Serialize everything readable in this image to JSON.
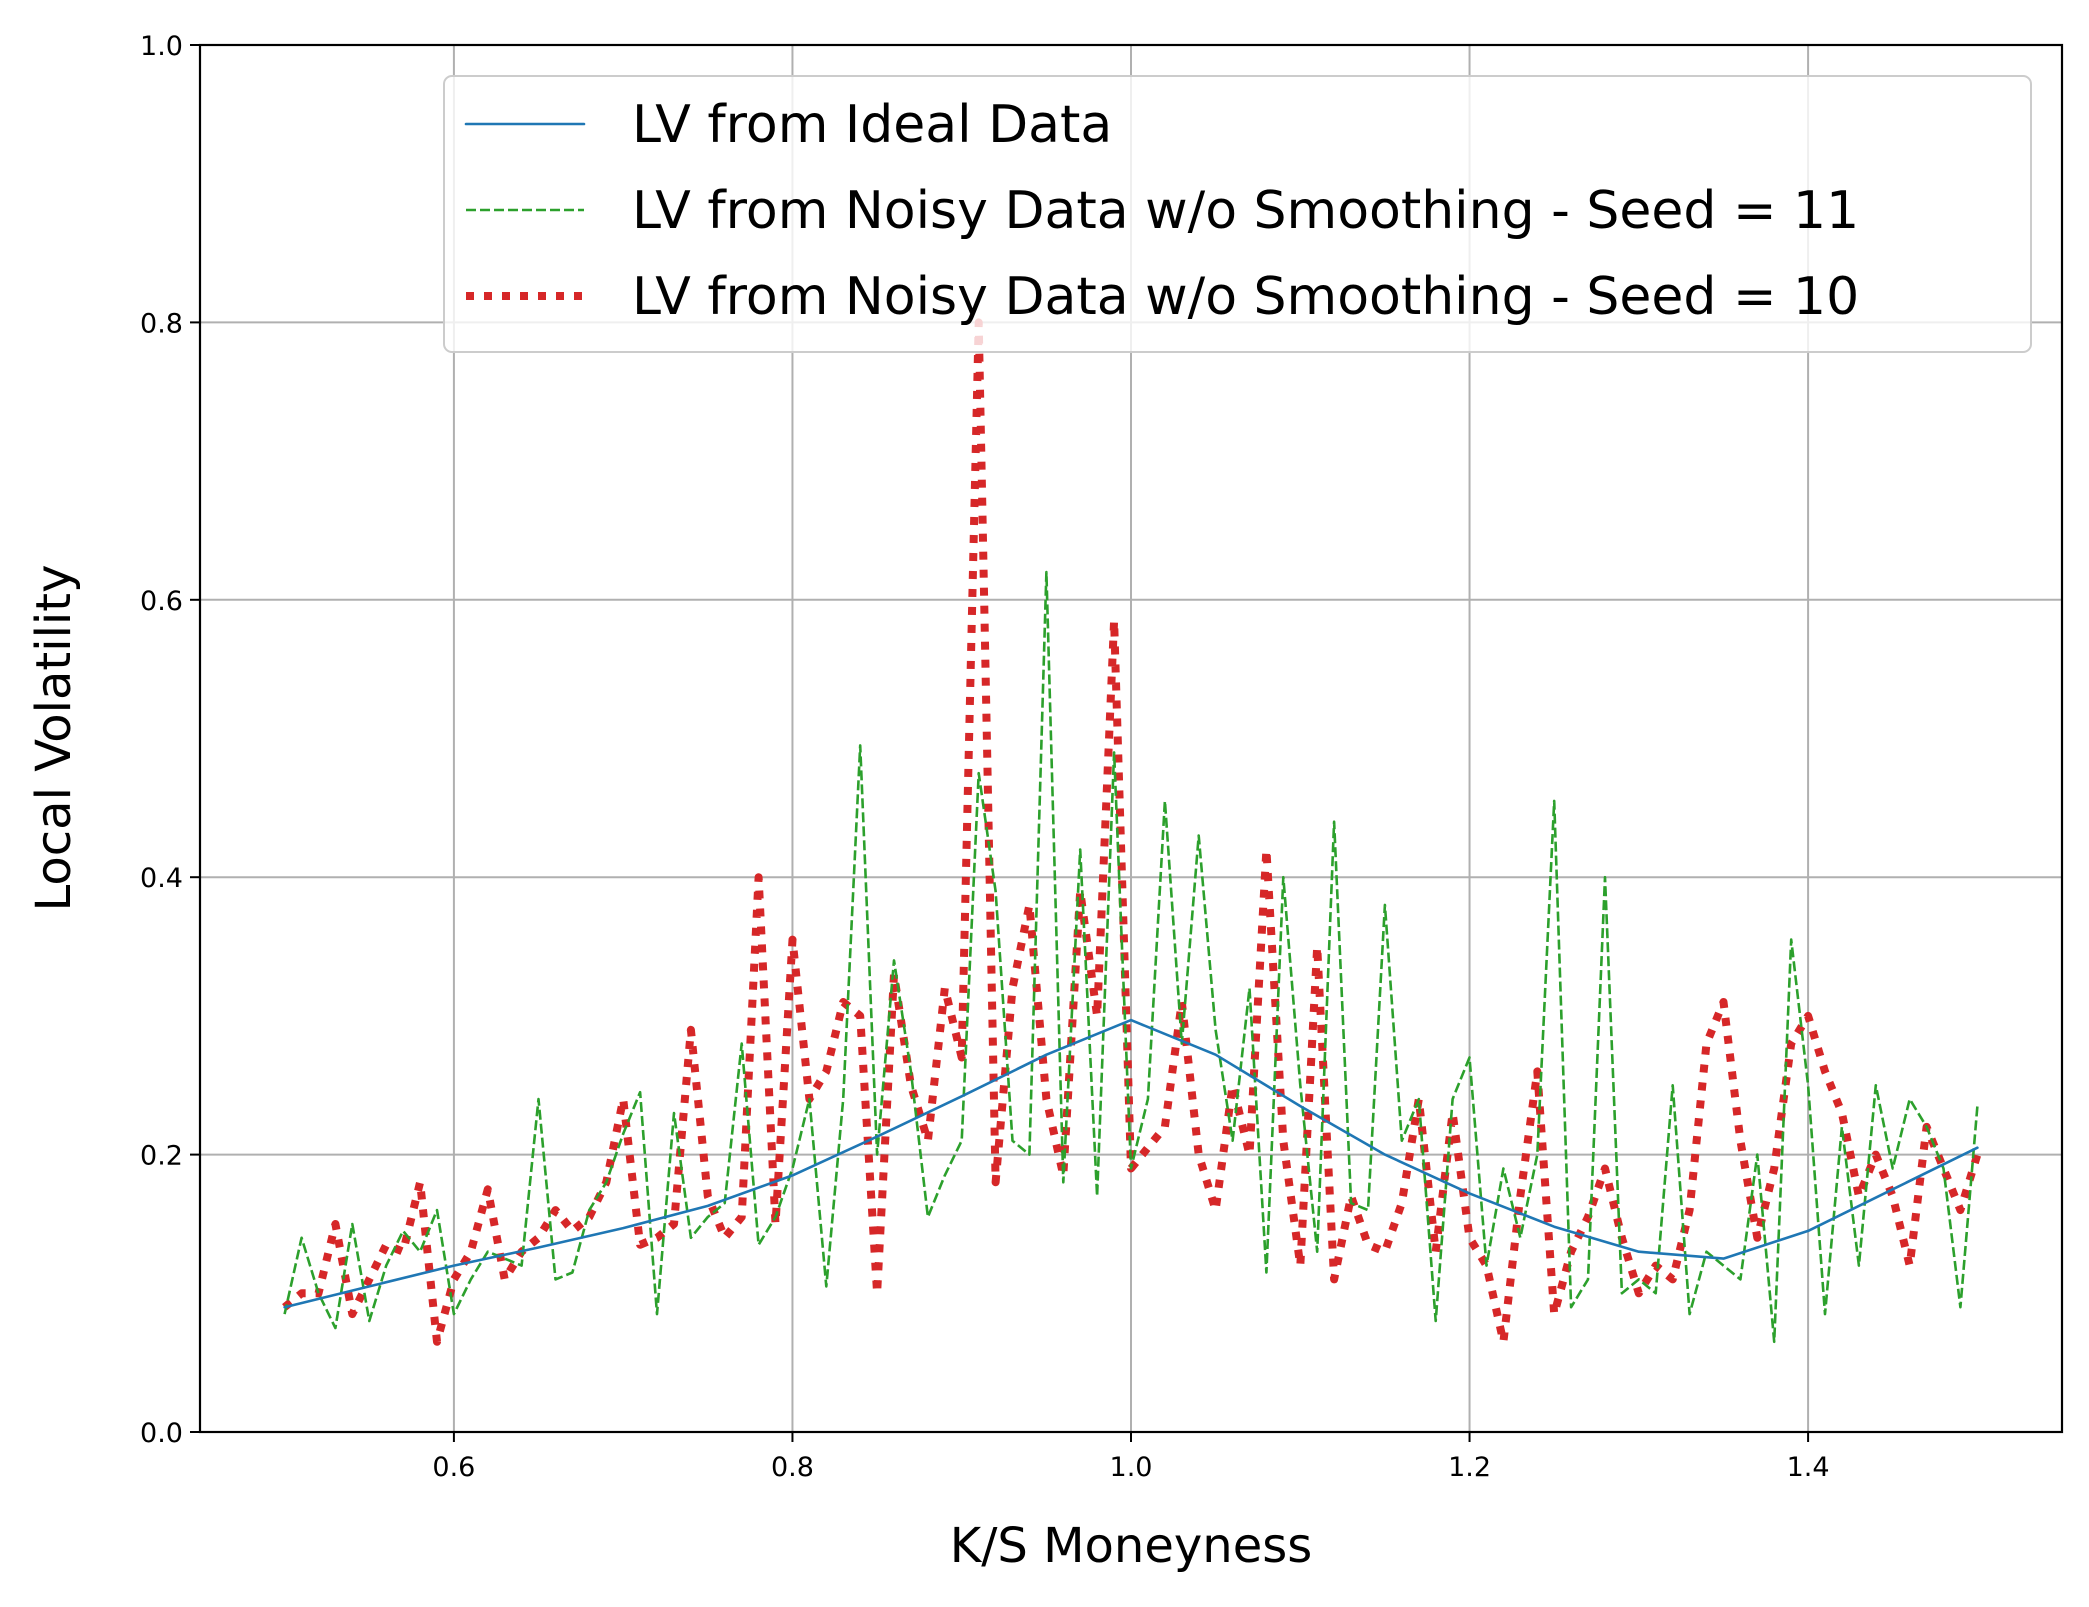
{
  "chart_data": {
    "type": "line",
    "title": "",
    "xlabel": "K/S Moneyness",
    "ylabel": "Local Volatility",
    "xlim": [
      0.45,
      1.55
    ],
    "ylim": [
      0.0,
      1.0
    ],
    "grid": true,
    "legend_position": "top-right",
    "x_ticks": [
      0.6,
      0.8,
      1.0,
      1.2,
      1.4
    ],
    "x_tick_labels": [
      "0.6",
      "0.8",
      "1.0",
      "1.2",
      "1.4"
    ],
    "y_ticks": [
      0.0,
      0.2,
      0.4,
      0.6,
      0.8,
      1.0
    ],
    "y_tick_labels": [
      "0.0",
      "0.2",
      "0.4",
      "0.6",
      "0.8",
      "1.0"
    ],
    "series": [
      {
        "name": "LV from Ideal Data",
        "color": "#1f77b4",
        "style": "solid",
        "x": [
          0.5,
          0.55,
          0.6,
          0.65,
          0.7,
          0.75,
          0.8,
          0.85,
          0.9,
          0.95,
          1.0,
          1.05,
          1.1,
          1.15,
          1.2,
          1.25,
          1.3,
          1.35,
          1.4,
          1.45,
          1.5
        ],
        "y": [
          0.09,
          0.105,
          0.12,
          0.133,
          0.147,
          0.163,
          0.185,
          0.213,
          0.242,
          0.272,
          0.297,
          0.272,
          0.235,
          0.2,
          0.172,
          0.148,
          0.13,
          0.125,
          0.145,
          0.175,
          0.205
        ]
      },
      {
        "name": "LV from Noisy Data w/o Smoothing - Seed = 11",
        "color": "#2ca02c",
        "style": "dashed",
        "x": [
          0.5,
          0.51,
          0.52,
          0.53,
          0.54,
          0.55,
          0.56,
          0.57,
          0.58,
          0.59,
          0.6,
          0.61,
          0.62,
          0.63,
          0.64,
          0.65,
          0.66,
          0.67,
          0.68,
          0.69,
          0.7,
          0.71,
          0.72,
          0.73,
          0.74,
          0.75,
          0.76,
          0.77,
          0.78,
          0.79,
          0.8,
          0.81,
          0.82,
          0.83,
          0.84,
          0.85,
          0.86,
          0.87,
          0.88,
          0.89,
          0.9,
          0.91,
          0.92,
          0.93,
          0.94,
          0.95,
          0.96,
          0.97,
          0.98,
          0.99,
          1.0,
          1.01,
          1.02,
          1.03,
          1.04,
          1.05,
          1.06,
          1.07,
          1.08,
          1.09,
          1.1,
          1.11,
          1.12,
          1.13,
          1.14,
          1.15,
          1.16,
          1.17,
          1.18,
          1.19,
          1.2,
          1.21,
          1.22,
          1.23,
          1.24,
          1.25,
          1.26,
          1.27,
          1.28,
          1.29,
          1.3,
          1.31,
          1.32,
          1.33,
          1.34,
          1.35,
          1.36,
          1.37,
          1.38,
          1.39,
          1.4,
          1.41,
          1.42,
          1.43,
          1.44,
          1.45,
          1.46,
          1.47,
          1.48,
          1.49,
          1.5
        ],
        "y": [
          0.085,
          0.14,
          0.1,
          0.075,
          0.15,
          0.08,
          0.12,
          0.145,
          0.13,
          0.16,
          0.085,
          0.11,
          0.13,
          0.125,
          0.12,
          0.24,
          0.11,
          0.115,
          0.16,
          0.18,
          0.215,
          0.245,
          0.085,
          0.23,
          0.14,
          0.155,
          0.165,
          0.28,
          0.135,
          0.155,
          0.19,
          0.24,
          0.105,
          0.24,
          0.495,
          0.2,
          0.34,
          0.26,
          0.155,
          0.185,
          0.21,
          0.475,
          0.39,
          0.21,
          0.2,
          0.62,
          0.18,
          0.42,
          0.17,
          0.49,
          0.19,
          0.24,
          0.455,
          0.28,
          0.43,
          0.29,
          0.21,
          0.32,
          0.115,
          0.4,
          0.25,
          0.13,
          0.44,
          0.165,
          0.16,
          0.38,
          0.21,
          0.24,
          0.08,
          0.24,
          0.27,
          0.12,
          0.19,
          0.14,
          0.2,
          0.455,
          0.09,
          0.11,
          0.4,
          0.1,
          0.11,
          0.1,
          0.25,
          0.085,
          0.13,
          0.12,
          0.11,
          0.2,
          0.065,
          0.355,
          0.25,
          0.085,
          0.22,
          0.12,
          0.25,
          0.19,
          0.24,
          0.22,
          0.19,
          0.09,
          0.235
        ]
      },
      {
        "name": "LV from Noisy Data w/o Smoothing - Seed = 10",
        "color": "#d62728",
        "style": "dotted",
        "x": [
          0.5,
          0.51,
          0.52,
          0.53,
          0.54,
          0.55,
          0.56,
          0.57,
          0.58,
          0.59,
          0.6,
          0.61,
          0.62,
          0.63,
          0.64,
          0.65,
          0.66,
          0.67,
          0.68,
          0.69,
          0.7,
          0.71,
          0.72,
          0.73,
          0.74,
          0.75,
          0.76,
          0.77,
          0.78,
          0.79,
          0.8,
          0.81,
          0.82,
          0.83,
          0.84,
          0.85,
          0.86,
          0.87,
          0.88,
          0.89,
          0.9,
          0.91,
          0.92,
          0.93,
          0.94,
          0.95,
          0.96,
          0.97,
          0.98,
          0.99,
          1.0,
          1.01,
          1.02,
          1.03,
          1.04,
          1.05,
          1.06,
          1.07,
          1.08,
          1.09,
          1.1,
          1.11,
          1.12,
          1.13,
          1.14,
          1.15,
          1.16,
          1.17,
          1.18,
          1.19,
          1.2,
          1.21,
          1.22,
          1.23,
          1.24,
          1.25,
          1.26,
          1.27,
          1.28,
          1.29,
          1.3,
          1.31,
          1.32,
          1.33,
          1.34,
          1.35,
          1.36,
          1.37,
          1.38,
          1.39,
          1.4,
          1.41,
          1.42,
          1.43,
          1.44,
          1.45,
          1.46,
          1.47,
          1.48,
          1.49,
          1.5
        ],
        "y": [
          0.09,
          0.1,
          0.1,
          0.15,
          0.085,
          0.11,
          0.135,
          0.13,
          0.18,
          0.065,
          0.11,
          0.13,
          0.175,
          0.11,
          0.13,
          0.14,
          0.16,
          0.145,
          0.155,
          0.18,
          0.24,
          0.135,
          0.14,
          0.15,
          0.29,
          0.17,
          0.14,
          0.155,
          0.4,
          0.15,
          0.355,
          0.24,
          0.26,
          0.31,
          0.3,
          0.1,
          0.33,
          0.25,
          0.21,
          0.32,
          0.27,
          0.8,
          0.18,
          0.32,
          0.38,
          0.24,
          0.185,
          0.39,
          0.3,
          0.585,
          0.19,
          0.205,
          0.22,
          0.31,
          0.2,
          0.16,
          0.25,
          0.2,
          0.42,
          0.21,
          0.12,
          0.35,
          0.11,
          0.17,
          0.135,
          0.13,
          0.165,
          0.24,
          0.13,
          0.23,
          0.14,
          0.12,
          0.065,
          0.17,
          0.26,
          0.085,
          0.13,
          0.155,
          0.19,
          0.14,
          0.1,
          0.12,
          0.11,
          0.16,
          0.28,
          0.31,
          0.21,
          0.14,
          0.19,
          0.28,
          0.3,
          0.26,
          0.23,
          0.17,
          0.2,
          0.17,
          0.12,
          0.22,
          0.19,
          0.16,
          0.2
        ]
      }
    ]
  }
}
